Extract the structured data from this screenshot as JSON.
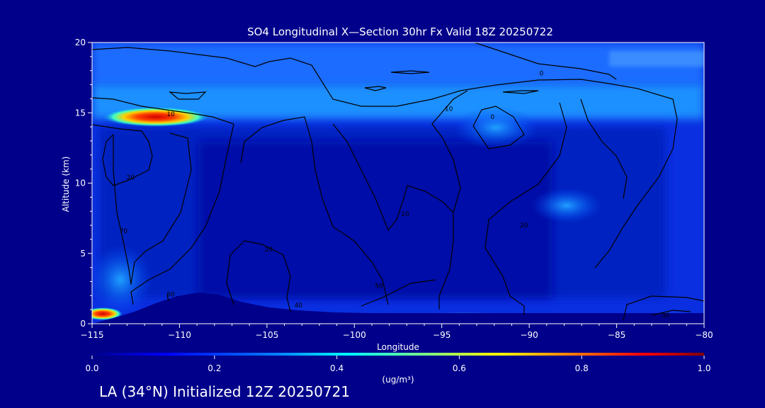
{
  "chart_data": {
    "type": "heatmap",
    "title": "SO4 Longitudinal X—Section 30hr  Fx Valid 18Z 20250722",
    "subtitle": "LA (34°N) Initialized 12Z 20250721",
    "xlabel": "Longitude",
    "ylabel": "Altitude (km)",
    "xlim": [
      -115,
      -80
    ],
    "ylim": [
      0,
      20
    ],
    "x_ticks": [
      -115,
      -110,
      -105,
      -100,
      -95,
      -90,
      -85,
      -80
    ],
    "x_tick_labels": [
      "−115",
      "−110",
      "−105",
      "−100",
      "−95",
      "−90",
      "−85",
      "−80"
    ],
    "y_ticks": [
      0,
      5,
      10,
      15,
      20
    ],
    "y_tick_labels": [
      "0",
      "5",
      "10",
      "15",
      "20"
    ],
    "colorbar": {
      "min": 0.0,
      "max": 1.0,
      "ticks": [
        0.0,
        0.2,
        0.4,
        0.6,
        0.8,
        1.0
      ],
      "tick_labels": [
        "0.0",
        "0.2",
        "0.4",
        "0.6",
        "0.8",
        "1.0"
      ],
      "label": "(ug/m³)",
      "colors": [
        "#00008b",
        "#0000ff",
        "#0080ff",
        "#00ffff",
        "#80ff80",
        "#ffff00",
        "#ff8000",
        "#ff0000",
        "#800000"
      ]
    },
    "contour_labels": [
      {
        "text": "10",
        "lon": -110.5,
        "alt": 14.9
      },
      {
        "text": "20",
        "lon": -112.8,
        "alt": 10.4
      },
      {
        "text": "10",
        "lon": -94.6,
        "alt": 15.3
      },
      {
        "text": "0",
        "lon": -89.3,
        "alt": 17.8
      },
      {
        "text": "0",
        "lon": -92.1,
        "alt": 14.7
      },
      {
        "text": "10",
        "lon": -97.1,
        "alt": 7.8
      },
      {
        "text": "70",
        "lon": -113.2,
        "alt": 6.6
      },
      {
        "text": "20",
        "lon": -104.9,
        "alt": 5.3
      },
      {
        "text": "60",
        "lon": -110.5,
        "alt": 2.1
      },
      {
        "text": "50",
        "lon": -98.6,
        "alt": 2.7
      },
      {
        "text": "40",
        "lon": -103.2,
        "alt": 1.3
      },
      {
        "text": "20",
        "lon": -90.3,
        "alt": 7.0
      },
      {
        "text": "30",
        "lon": -82.2,
        "alt": 0.6
      }
    ]
  }
}
